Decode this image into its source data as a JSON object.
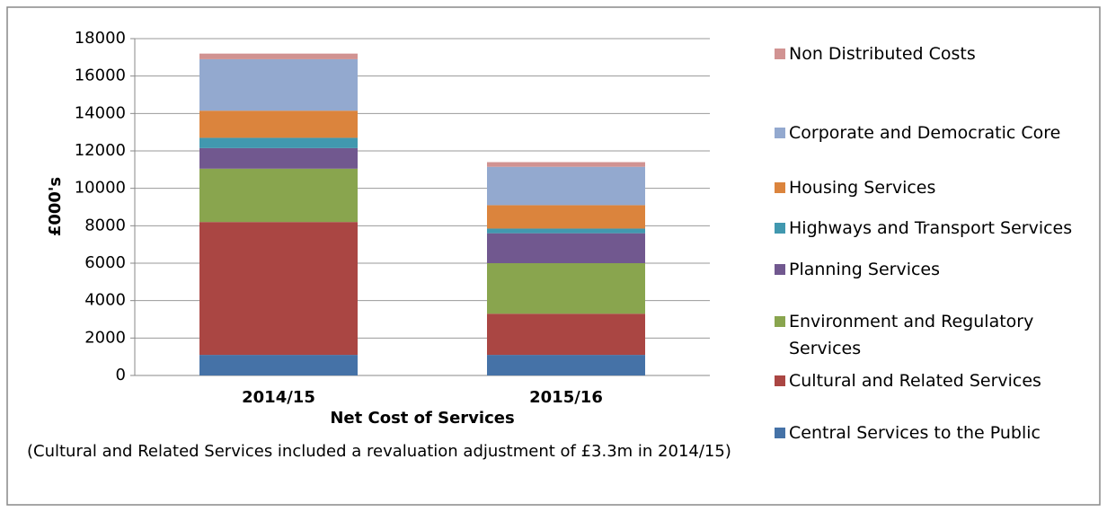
{
  "chart_data": {
    "type": "stacked_bar",
    "y_label": "£000's",
    "x_label": "Net Cost of Services",
    "annotation": "(Cultural and Related Services included a revaluation adjustment of £3.3m in 2014/15)",
    "categories": [
      "2014/15",
      "2015/16"
    ],
    "series": [
      {
        "name": "Central Services to the Public",
        "color": "#4572a7",
        "values": [
          1100,
          1100
        ]
      },
      {
        "name": "Cultural and Related Services",
        "color": "#aa4643",
        "values": [
          7100,
          2200
        ]
      },
      {
        "name": "Environment and Regulatory Services",
        "color": "#89a54e",
        "values": [
          2850,
          2700
        ]
      },
      {
        "name": "Planning Services",
        "color": "#71588f",
        "values": [
          1100,
          1600
        ]
      },
      {
        "name": "Highways and Transport Services",
        "color": "#4198af",
        "values": [
          550,
          250
        ]
      },
      {
        "name": "Housing Services",
        "color": "#db843d",
        "values": [
          1450,
          1250
        ]
      },
      {
        "name": "Corporate and Democratic Core",
        "color": "#93a9cf",
        "values": [
          2750,
          2050
        ]
      },
      {
        "name": "Non Distributed Costs",
        "color": "#d19392",
        "values": [
          300,
          250
        ]
      }
    ],
    "ylim": [
      0,
      18000
    ],
    "yticks": [
      0,
      2000,
      4000,
      6000,
      8000,
      10000,
      12000,
      14000,
      16000,
      18000
    ],
    "grid": true
  }
}
